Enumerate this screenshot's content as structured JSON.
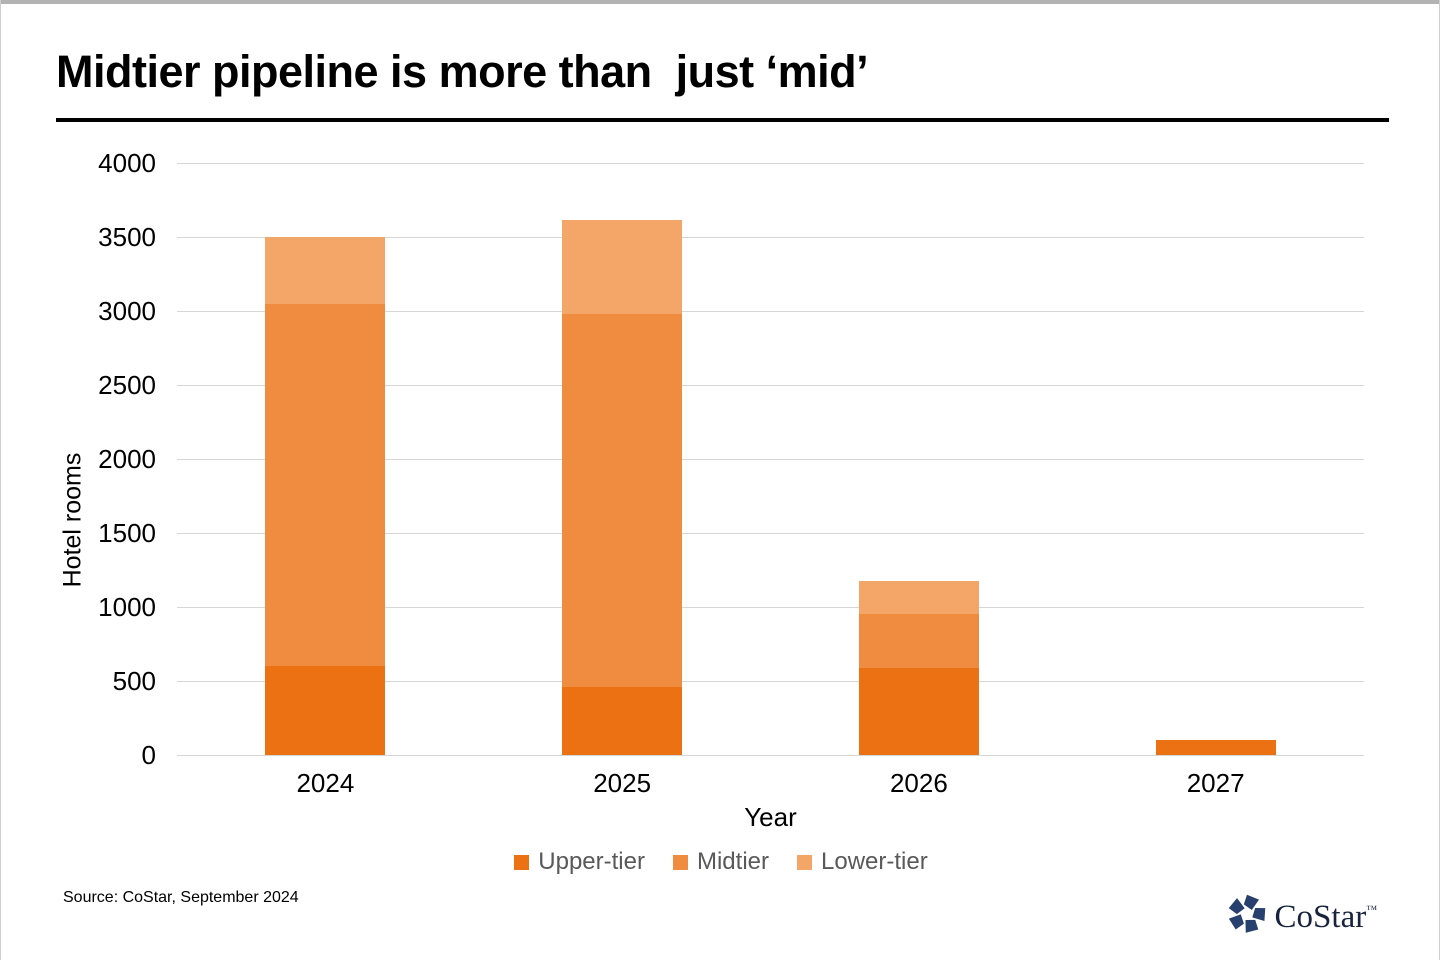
{
  "window": {
    "top_edge_color": "#b3b3b3"
  },
  "header": {
    "title": "Midtier pipeline is more than  just ‘mid’"
  },
  "chart_data": {
    "type": "bar",
    "stacked": true,
    "categories": [
      "2024",
      "2025",
      "2026",
      "2027"
    ],
    "series": [
      {
        "name": "Upper-tier",
        "color": "#ec7113",
        "values": [
          600,
          460,
          590,
          100
        ]
      },
      {
        "name": "Midtier",
        "color": "#f08c40",
        "values": [
          2450,
          2520,
          365,
          0
        ]
      },
      {
        "name": "Lower-tier",
        "color": "#f4a668",
        "values": [
          450,
          635,
          220,
          0
        ]
      }
    ],
    "totals": [
      3500,
      3615,
      1175,
      100
    ],
    "xlabel": "Year",
    "ylabel": "Hotel rooms",
    "ylim": [
      0,
      4000
    ],
    "ytick_step": 500,
    "grid": true,
    "gridline_color": "#d6d6d6",
    "legend_position": "bottom"
  },
  "footer": {
    "source": "Source: CoStar, September 2024",
    "logo": {
      "wordmark": "CoStar",
      "trademark": "™",
      "icon_color": "#27406e"
    }
  }
}
